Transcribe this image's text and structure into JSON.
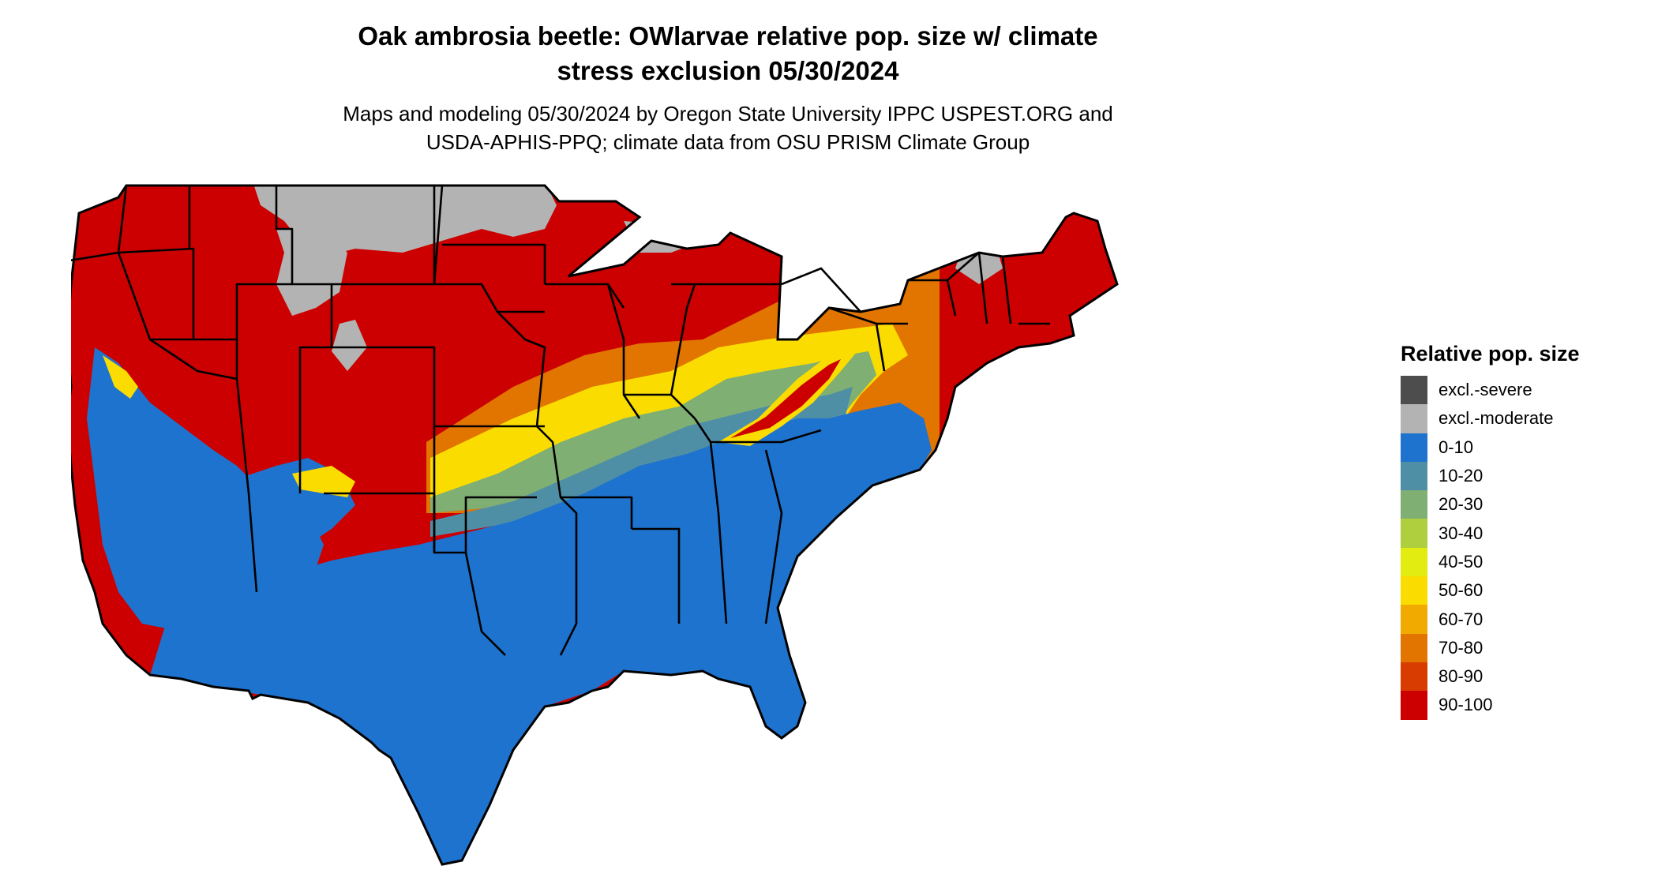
{
  "title": {
    "line1": "Oak ambrosia beetle: OWlarvae relative pop. size w/ climate",
    "line2": "stress exclusion 05/30/2024"
  },
  "subtitle": {
    "line1": "Maps and modeling 05/30/2024 by Oregon State University IPPC USPEST.ORG and",
    "line2": "USDA-APHIS-PPQ; climate data from OSU PRISM Climate Group"
  },
  "legend": {
    "title": "Relative pop. size",
    "items": [
      {
        "label": "excl.-severe",
        "color": "#4d4d4d"
      },
      {
        "label": "excl.-moderate",
        "color": "#b3b3b3"
      },
      {
        "label": "0-10",
        "color": "#1e73cf"
      },
      {
        "label": "10-20",
        "color": "#4f8fa6"
      },
      {
        "label": "20-30",
        "color": "#7faf72"
      },
      {
        "label": "30-40",
        "color": "#b0cf3f"
      },
      {
        "label": "40-50",
        "color": "#e2ec10"
      },
      {
        "label": "50-60",
        "color": "#fadc00"
      },
      {
        "label": "60-70",
        "color": "#f0aa00"
      },
      {
        "label": "70-80",
        "color": "#e27400"
      },
      {
        "label": "80-90",
        "color": "#d93c00"
      },
      {
        "label": "90-100",
        "color": "#cc0000"
      }
    ]
  },
  "map": {
    "region": "Contiguous United States",
    "zones_description_colors": {
      "north_and_west": "#cc0000",
      "southeast_and_south": "#1e73cf",
      "exclusion_moderate": "#b3b3b3"
    }
  }
}
